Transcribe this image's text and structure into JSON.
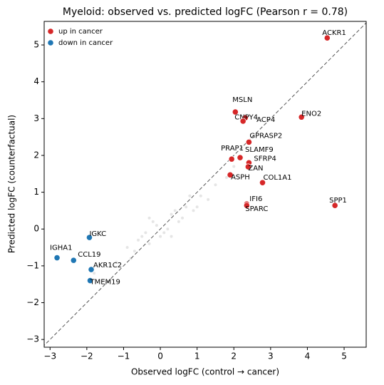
{
  "chart_data": {
    "type": "scatter",
    "title": "Myeloid: observed vs. predicted logFC   (Pearson r = 0.78)",
    "x_label": "Observed logFC  (control → cancer)",
    "y_label": "Predicted logFC  (counterfactual)",
    "xlim": [
      -3.16,
      5.6
    ],
    "ylim": [
      -3.21,
      5.64
    ],
    "xticks": [
      {
        "value": -3,
        "label": "−3"
      },
      {
        "value": -2,
        "label": "−2"
      },
      {
        "value": -1,
        "label": "−1"
      },
      0,
      1,
      2,
      3,
      4,
      5
    ],
    "yticks": [
      {
        "value": -3,
        "label": "−3"
      },
      {
        "value": -2,
        "label": "−2"
      },
      {
        "value": -1,
        "label": "−1"
      },
      0,
      1,
      2,
      3,
      4,
      5
    ],
    "legend": "upper left",
    "diagonal": true,
    "background": {
      "color": "#d3d3d3",
      "x": [
        -1.2,
        -0.9,
        -0.7,
        -0.5,
        -0.3,
        -0.1,
        0.1,
        0.3,
        0.5,
        0.7,
        0.9,
        1.1,
        1.3,
        1.5,
        -0.6,
        -0.2,
        0.2,
        0.4,
        0.0,
        -0.4,
        0.6,
        0.8,
        -1.5,
        -1.8,
        1.8,
        2.0,
        -0.8,
        1.0,
        0.3,
        -0.3
      ],
      "y": [
        -0.9,
        -0.5,
        -0.6,
        -0.2,
        -0.4,
        0.1,
        -0.1,
        0.4,
        0.2,
        0.6,
        0.5,
        0.9,
        0.8,
        1.2,
        -0.3,
        0.2,
        0.0,
        0.5,
        -0.2,
        -0.1,
        0.3,
        0.9,
        -1.0,
        -1.2,
        1.4,
        1.7,
        -0.8,
        0.6,
        -0.2,
        0.3
      ]
    },
    "series": [
      {
        "name": "up in cancer",
        "color": "#d62728",
        "labels": [
          "ACKR1",
          "MSLN",
          "CNPY4",
          "ACP4",
          "ENO2",
          "GPRASP2",
          "SLAMF9",
          "PRAP1",
          "SFRP4",
          "ZAN",
          "ASPH",
          "COL1A1",
          "IFI6",
          "SPARC",
          "SPP1"
        ],
        "x": [
          4.54,
          2.04,
          2.31,
          2.25,
          3.84,
          2.41,
          2.17,
          1.94,
          2.41,
          2.39,
          1.9,
          2.78,
          2.35,
          2.35,
          4.75
        ],
        "values": [
          5.19,
          3.18,
          3.02,
          2.93,
          3.04,
          2.36,
          1.94,
          1.9,
          1.8,
          1.69,
          1.47,
          1.26,
          0.68,
          0.64,
          0.64
        ]
      },
      {
        "name": "down in cancer",
        "color": "#1f77b4",
        "labels": [
          "IGKC",
          "IGHA1",
          "CCL19",
          "AKR1C2",
          "TMEM19"
        ],
        "x": [
          -1.93,
          -2.81,
          -2.36,
          -1.88,
          -1.91
        ],
        "values": [
          -0.23,
          -0.78,
          -0.85,
          -1.1,
          -1.4
        ]
      }
    ]
  }
}
